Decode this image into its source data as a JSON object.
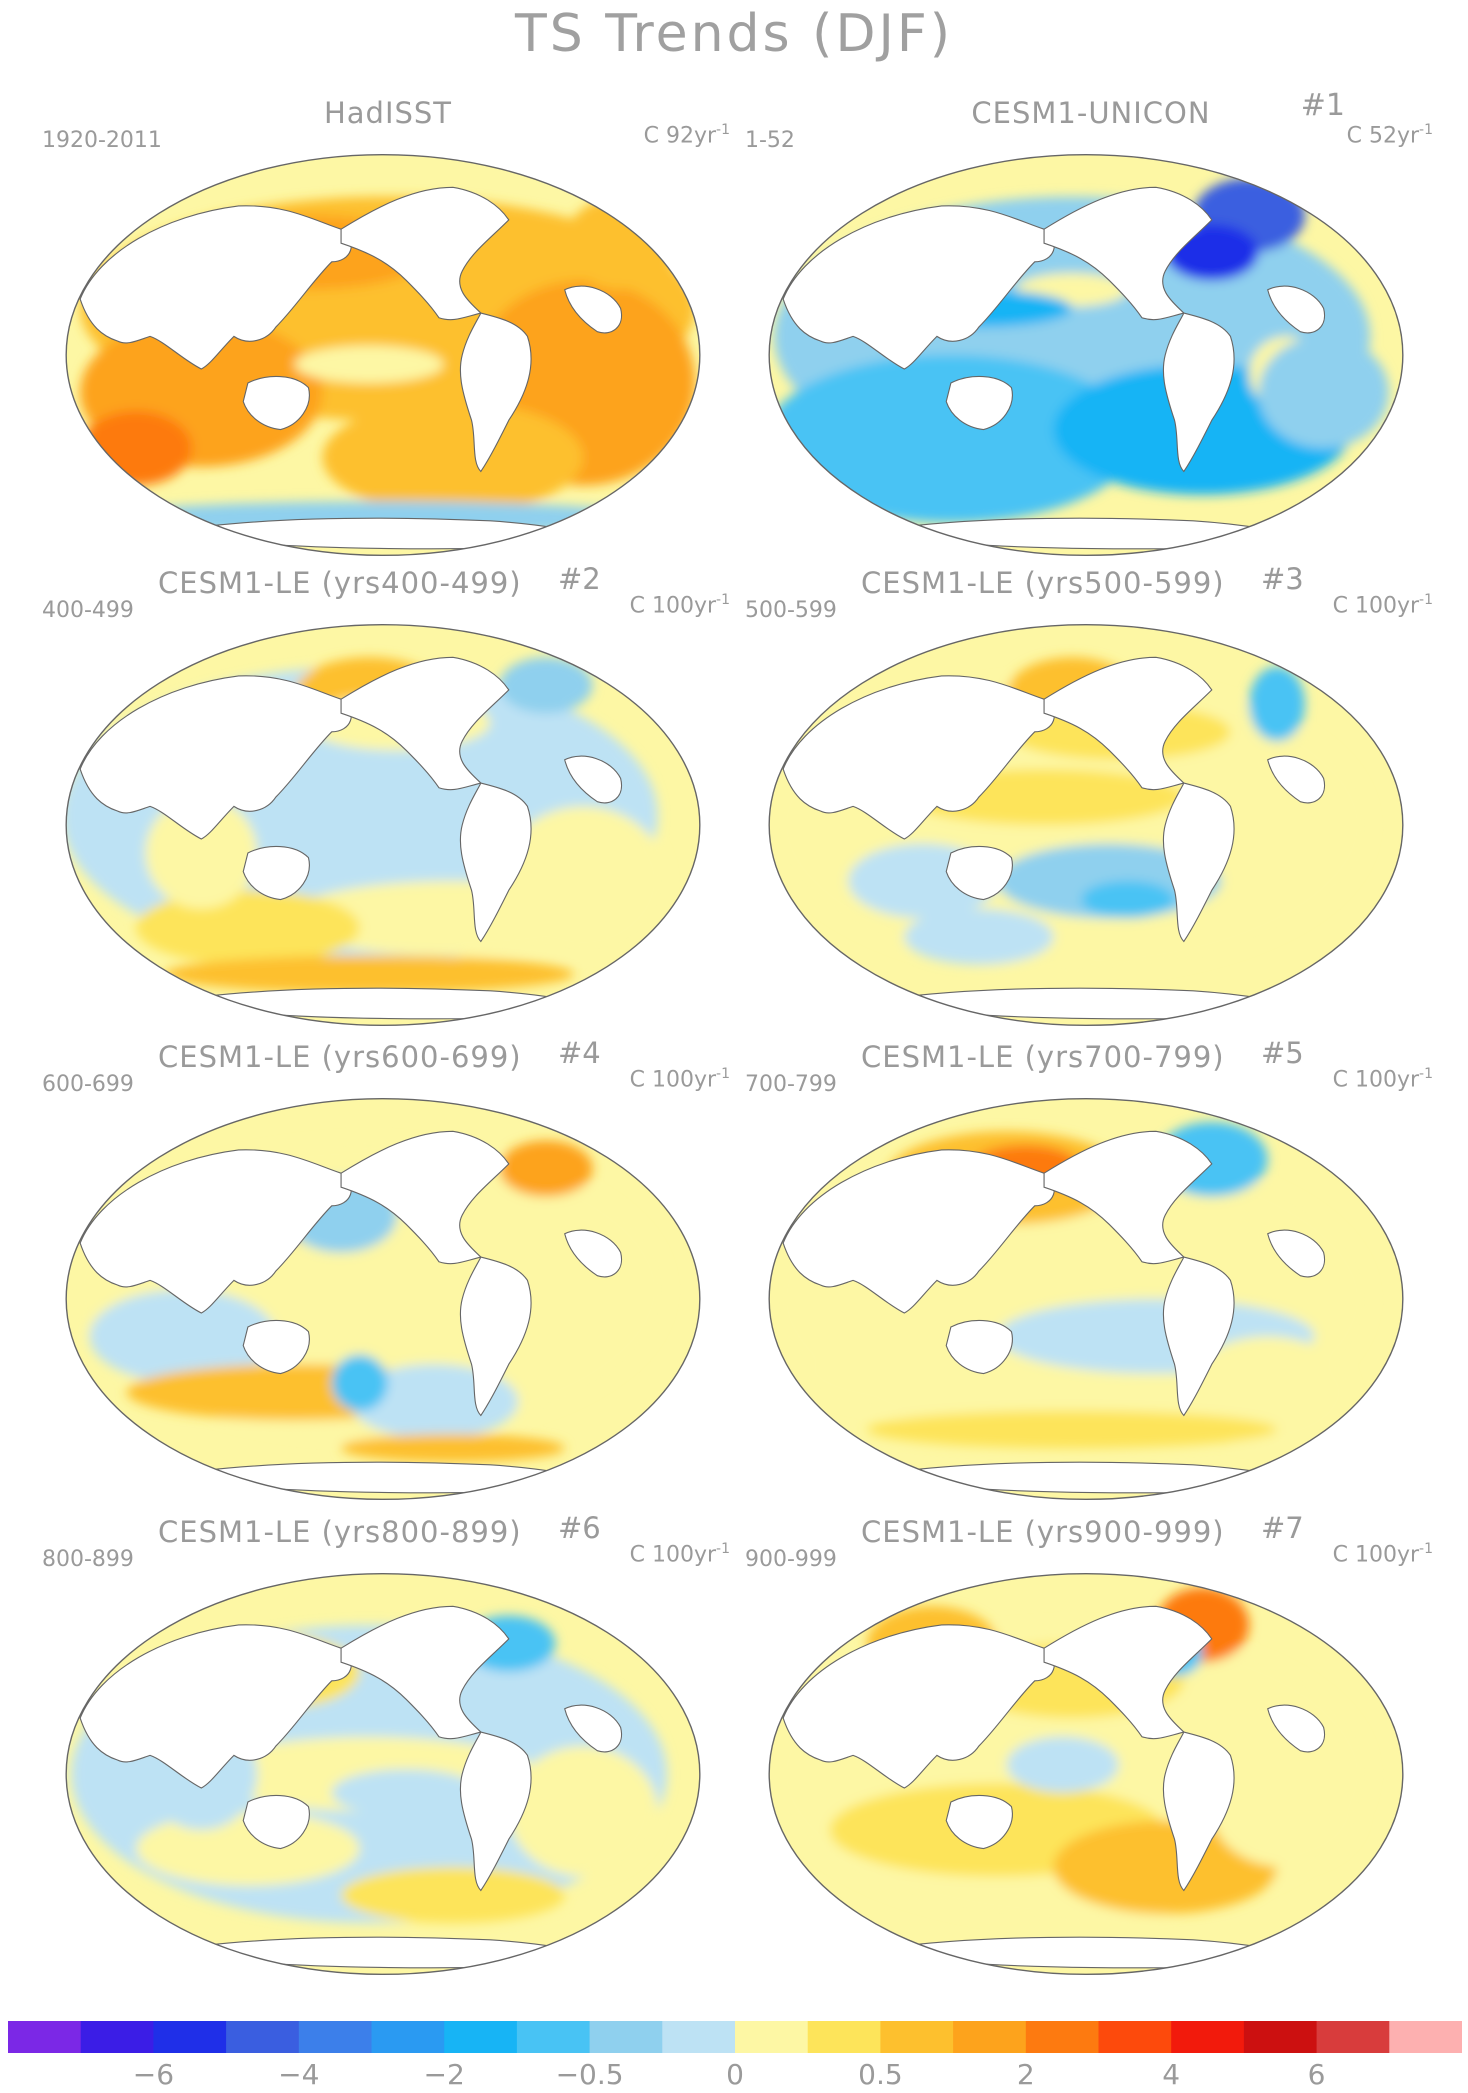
{
  "figure": {
    "title": "TS Trends (DJF)"
  },
  "panels": [
    {
      "title": "HadISST",
      "number": "",
      "period": "1920-2011",
      "units": "C 92yr",
      "units_exp": "-1",
      "pattern": "warm"
    },
    {
      "title": "CESM1-UNICON",
      "number": "#1",
      "period": "1-52",
      "units": "C 52yr",
      "units_exp": "-1",
      "pattern": "cool"
    },
    {
      "title": "CESM1-LE (yrs400-499)",
      "number": "#2",
      "period": "400-499",
      "units": "C 100yr",
      "units_exp": "-1",
      "pattern": "mixed-a"
    },
    {
      "title": "CESM1-LE (yrs500-599)",
      "number": "#3",
      "period": "500-599",
      "units": "C 100yr",
      "units_exp": "-1",
      "pattern": "mixed-b"
    },
    {
      "title": "CESM1-LE (yrs600-699)",
      "number": "#4",
      "period": "600-699",
      "units": "C 100yr",
      "units_exp": "-1",
      "pattern": "mixed-c"
    },
    {
      "title": "CESM1-LE (yrs700-799)",
      "number": "#5",
      "period": "700-799",
      "units": "C 100yr",
      "units_exp": "-1",
      "pattern": "mixed-d"
    },
    {
      "title": "CESM1-LE (yrs800-899)",
      "number": "#6",
      "period": "800-899",
      "units": "C 100yr",
      "units_exp": "-1",
      "pattern": "mixed-e"
    },
    {
      "title": "CESM1-LE (yrs900-999)",
      "number": "#7",
      "period": "900-999",
      "units": "C 100yr",
      "units_exp": "-1",
      "pattern": "mixed-f"
    }
  ],
  "colorbar": {
    "colors": [
      "#7b28e6",
      "#3b1de6",
      "#1f2fe8",
      "#3a5ee0",
      "#3c7fea",
      "#2a9af2",
      "#17b4f5",
      "#48c3f4",
      "#8fd0ee",
      "#bde2f4",
      "#fdf7a4",
      "#fde45a",
      "#fdc02e",
      "#fda31c",
      "#fd7a10",
      "#fd4a0c",
      "#f21a0c",
      "#cc1010",
      "#d83c3c",
      "#fdb0b0"
    ],
    "labels": [
      {
        "text": "−6",
        "boundary": 2
      },
      {
        "text": "−4",
        "boundary": 4
      },
      {
        "text": "−2",
        "boundary": 6
      },
      {
        "text": "−0.5",
        "boundary": 8
      },
      {
        "text": "0",
        "boundary": 10
      },
      {
        "text": "0.5",
        "boundary": 12
      },
      {
        "text": "2",
        "boundary": 14
      },
      {
        "text": "4",
        "boundary": 16
      },
      {
        "text": "6",
        "boundary": 18
      }
    ]
  }
}
